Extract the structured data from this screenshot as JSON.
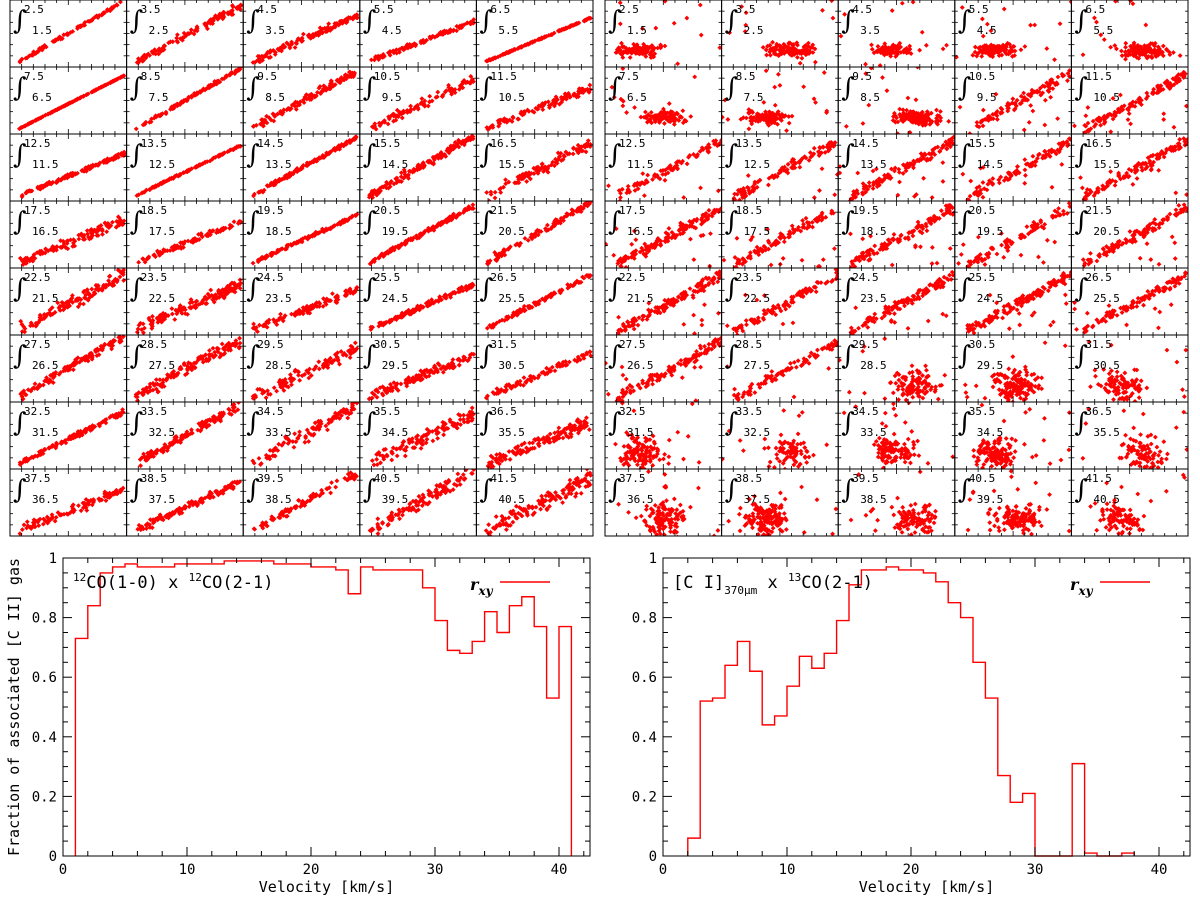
{
  "colors": {
    "series": "#ff0000",
    "axis": "#000000"
  },
  "scatter_grids": {
    "left": {
      "rows": 8,
      "cols": 5,
      "trend": "correlated"
    },
    "right": {
      "rows": 8,
      "cols": 5,
      "trend": "mixed"
    },
    "panels": [
      {
        "upper": "2.5",
        "lower": "1.5"
      },
      {
        "upper": "3.5",
        "lower": "2.5"
      },
      {
        "upper": "4.5",
        "lower": "3.5"
      },
      {
        "upper": "5.5",
        "lower": "4.5"
      },
      {
        "upper": "6.5",
        "lower": "5.5"
      },
      {
        "upper": "7.5",
        "lower": "6.5"
      },
      {
        "upper": "8.5",
        "lower": "7.5"
      },
      {
        "upper": "9.5",
        "lower": "8.5"
      },
      {
        "upper": "10.5",
        "lower": "9.5"
      },
      {
        "upper": "11.5",
        "lower": "10.5"
      },
      {
        "upper": "12.5",
        "lower": "11.5"
      },
      {
        "upper": "13.5",
        "lower": "12.5"
      },
      {
        "upper": "14.5",
        "lower": "13.5"
      },
      {
        "upper": "15.5",
        "lower": "14.5"
      },
      {
        "upper": "16.5",
        "lower": "15.5"
      },
      {
        "upper": "17.5",
        "lower": "16.5"
      },
      {
        "upper": "18.5",
        "lower": "17.5"
      },
      {
        "upper": "19.5",
        "lower": "18.5"
      },
      {
        "upper": "20.5",
        "lower": "19.5"
      },
      {
        "upper": "21.5",
        "lower": "20.5"
      },
      {
        "upper": "22.5",
        "lower": "21.5"
      },
      {
        "upper": "23.5",
        "lower": "22.5"
      },
      {
        "upper": "24.5",
        "lower": "23.5"
      },
      {
        "upper": "25.5",
        "lower": "24.5"
      },
      {
        "upper": "26.5",
        "lower": "25.5"
      },
      {
        "upper": "27.5",
        "lower": "26.5"
      },
      {
        "upper": "28.5",
        "lower": "27.5"
      },
      {
        "upper": "29.5",
        "lower": "28.5"
      },
      {
        "upper": "30.5",
        "lower": "29.5"
      },
      {
        "upper": "31.5",
        "lower": "30.5"
      },
      {
        "upper": "32.5",
        "lower": "31.5"
      },
      {
        "upper": "33.5",
        "lower": "32.5"
      },
      {
        "upper": "34.5",
        "lower": "33.5"
      },
      {
        "upper": "35.5",
        "lower": "34.5"
      },
      {
        "upper": "36.5",
        "lower": "35.5"
      },
      {
        "upper": "37.5",
        "lower": "36.5"
      },
      {
        "upper": "38.5",
        "lower": "37.5"
      },
      {
        "upper": "39.5",
        "lower": "38.5"
      },
      {
        "upper": "40.5",
        "lower": "39.5"
      },
      {
        "upper": "41.5",
        "lower": "40.5"
      }
    ]
  },
  "chart_data": [
    {
      "type": "line",
      "step": true,
      "title": "",
      "annotation": {
        "main": "CO(1-0)  x  ",
        "iso1": "12",
        "part2": "CO(2-1)",
        "iso2": "12",
        "prefix": ""
      },
      "legend": {
        "label": "r",
        "sub": "xy",
        "position": "top-right"
      },
      "xlabel": "Velocity [km/s]",
      "ylabel": "Fraction of associated [C II] gas",
      "xlim": [
        0,
        42.5
      ],
      "ylim": [
        0,
        1
      ],
      "xticks": [
        0,
        10,
        20,
        30,
        40
      ],
      "yticks": [
        0,
        0.2,
        0.4,
        0.6,
        0.8,
        1
      ],
      "ytick_labels": [
        "0",
        "0.2",
        "0.4",
        "0.6",
        "0.8",
        "1"
      ],
      "bin_edges": [
        1,
        2,
        3,
        4,
        5,
        6,
        7,
        8,
        9,
        10,
        11,
        12,
        13,
        14,
        15,
        16,
        17,
        18,
        19,
        20,
        21,
        22,
        23,
        24,
        25,
        26,
        27,
        28,
        29,
        30,
        31,
        32,
        33,
        34,
        35,
        36,
        37,
        38,
        39,
        40,
        41
      ],
      "values": [
        0.73,
        0.84,
        0.95,
        0.97,
        0.98,
        0.97,
        0.97,
        0.97,
        0.98,
        0.98,
        0.98,
        0.98,
        0.99,
        0.99,
        0.99,
        0.99,
        0.98,
        0.98,
        0.98,
        0.97,
        0.97,
        0.96,
        0.88,
        0.97,
        0.96,
        0.96,
        0.96,
        0.96,
        0.9,
        0.79,
        0.69,
        0.68,
        0.72,
        0.82,
        0.75,
        0.84,
        0.87,
        0.77,
        0.53,
        0.77
      ]
    },
    {
      "type": "line",
      "step": true,
      "title": "",
      "annotation": {
        "prefix": "[C I]",
        "prefix_sub": "370μm",
        "main": "  x  ",
        "iso2": "13",
        "part2": "CO(2-1)"
      },
      "legend": {
        "label": "r",
        "sub": "xy",
        "position": "top-right"
      },
      "xlabel": "Velocity [km/s]",
      "ylabel": "",
      "xlim": [
        0,
        42.5
      ],
      "ylim": [
        0,
        1
      ],
      "xticks": [
        0,
        10,
        20,
        30,
        40
      ],
      "yticks": [
        0,
        0.2,
        0.4,
        0.6,
        0.8,
        1
      ],
      "ytick_labels": [
        "0",
        "0.2",
        "0.4",
        "0.6",
        "0.8",
        "1"
      ],
      "bin_edges": [
        2,
        3,
        4,
        5,
        6,
        7,
        8,
        9,
        10,
        11,
        12,
        13,
        14,
        15,
        16,
        17,
        18,
        19,
        20,
        21,
        22,
        23,
        24,
        25,
        26,
        27,
        28,
        29,
        30,
        31,
        32,
        33,
        34,
        35,
        36,
        37,
        38
      ],
      "values": [
        0.06,
        0.52,
        0.53,
        0.64,
        0.72,
        0.62,
        0.44,
        0.47,
        0.57,
        0.67,
        0.63,
        0.68,
        0.79,
        0.91,
        0.96,
        0.96,
        0.97,
        0.96,
        0.96,
        0.95,
        0.92,
        0.85,
        0.8,
        0.65,
        0.53,
        0.27,
        0.18,
        0.21,
        0.0,
        0.0,
        0.0,
        0.31,
        0.01,
        0.0,
        0.0,
        0.01
      ]
    }
  ]
}
